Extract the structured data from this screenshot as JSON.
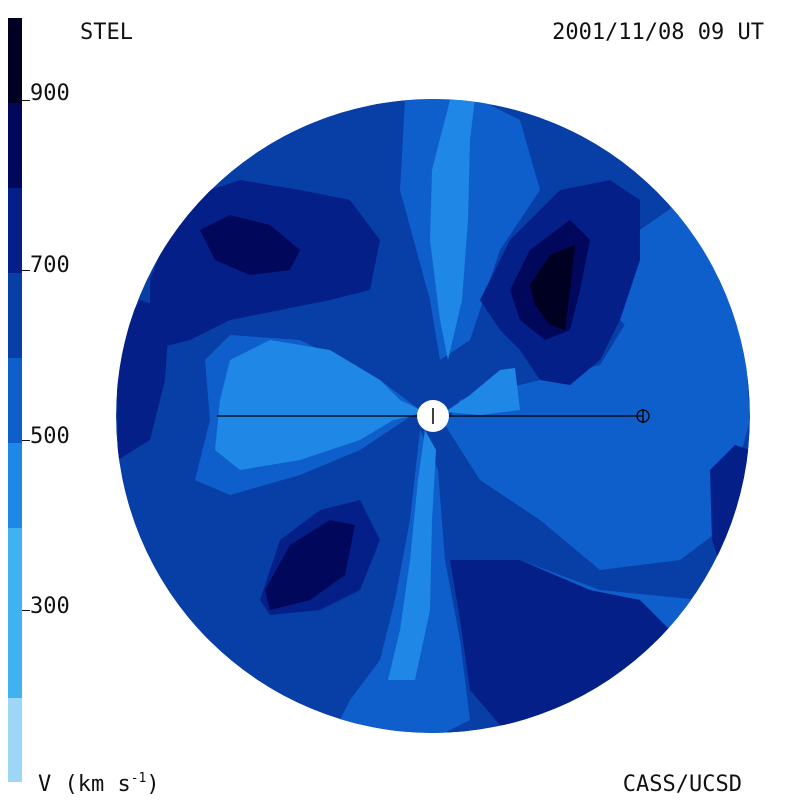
{
  "header": {
    "source": "STEL",
    "datetime": "2001/11/08 09 UT"
  },
  "footer": {
    "unit_label": "V (km s",
    "unit_sup": "-1",
    "unit_close": ")",
    "credit": "CASS/UCSD"
  },
  "colorbar": {
    "ticks": [
      "900",
      "700",
      "500",
      "300"
    ],
    "colors": [
      "#9dd6f7",
      "#3fb2ef",
      "#1f87e6",
      "#0e5fcc",
      "#083fa6",
      "#041f88",
      "#01075a",
      "#000022"
    ]
  },
  "map": {
    "colors": {
      "light": "#1f87e6",
      "mid": "#0e5fcc",
      "base": "#083fa6",
      "dark": "#041f88",
      "darker": "#01075a",
      "darkest": "#000022",
      "sun": "#ffffff"
    }
  }
}
